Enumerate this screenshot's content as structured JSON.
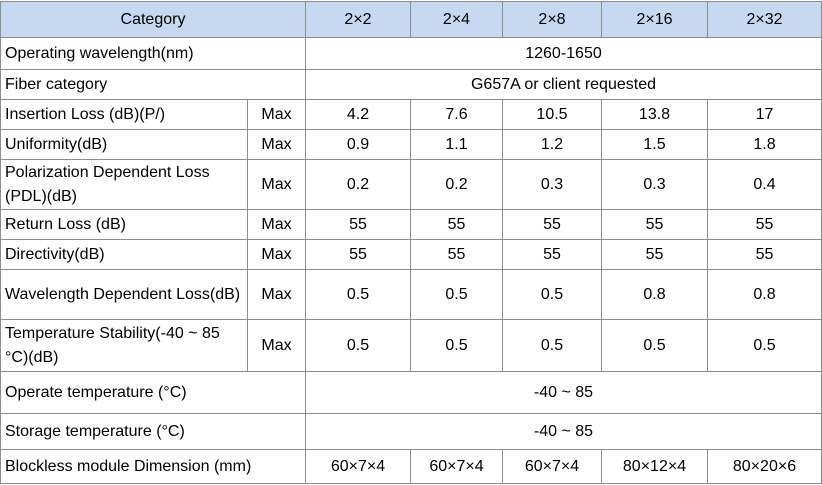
{
  "table": {
    "header": {
      "category": "Category",
      "columns": [
        "2×2",
        "2×4",
        "2×8",
        "2×16",
        "2×32"
      ]
    },
    "rows": [
      {
        "label": "Operating wavelength(nm)",
        "span": "1260-1650"
      },
      {
        "label": "Fiber category",
        "span": "G657A or client requested"
      },
      {
        "label": "Insertion Loss (dB)(P/)",
        "qualifier": "Max",
        "values": [
          "4.2",
          "7.6",
          "10.5",
          "13.8",
          "17"
        ]
      },
      {
        "label": "Uniformity(dB)",
        "qualifier": "Max",
        "values": [
          "0.9",
          "1.1",
          "1.2",
          "1.5",
          "1.8"
        ]
      },
      {
        "label": "Polarization Dependent Loss (PDL)(dB)",
        "qualifier": "Max",
        "values": [
          "0.2",
          "0.2",
          "0.3",
          "0.3",
          "0.4"
        ]
      },
      {
        "label": "Return Loss (dB)",
        "qualifier": "Max",
        "values": [
          "55",
          "55",
          "55",
          "55",
          "55"
        ]
      },
      {
        "label": "Directivity(dB)",
        "qualifier": "Max",
        "values": [
          "55",
          "55",
          "55",
          "55",
          "55"
        ]
      },
      {
        "label": "Wavelength Dependent Loss(dB)",
        "qualifier": "Max",
        "values": [
          "0.5",
          "0.5",
          "0.5",
          "0.8",
          "0.8"
        ]
      },
      {
        "label": "Temperature Stability(-40 ~ 85 °C)(dB)",
        "qualifier": "Max",
        "values": [
          "0.5",
          "0.5",
          "0.5",
          "0.5",
          "0.5"
        ]
      },
      {
        "label": "Operate temperature (°C)",
        "span": "-40 ~ 85"
      },
      {
        "label": "Storage temperature (°C)",
        "span": "-40 ~ 85"
      },
      {
        "label": "Blockless module Dimension (mm)",
        "values": [
          "60×7×4",
          "60×7×4",
          "60×7×4",
          "80×12×4",
          "80×20×6"
        ]
      }
    ]
  }
}
